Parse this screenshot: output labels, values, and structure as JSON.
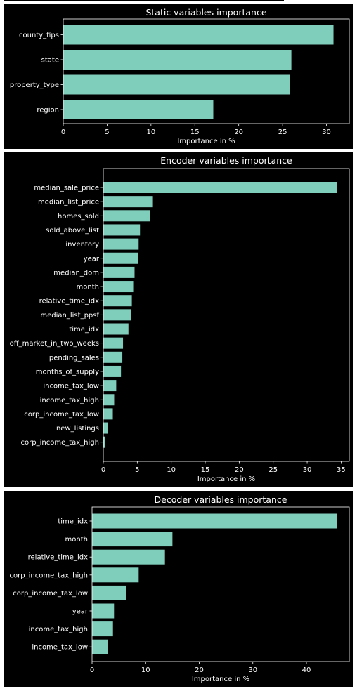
{
  "chart_data": [
    {
      "type": "bar",
      "orientation": "horizontal",
      "title": "Static variables importance",
      "xlabel": "Importance in %",
      "ylabel": "",
      "categories": [
        "county_fips",
        "state",
        "property_type",
        "region"
      ],
      "values": [
        30.8,
        26.0,
        25.8,
        17.1
      ],
      "xlim": [
        0,
        32.6
      ],
      "xticks": [
        0,
        5,
        10,
        15,
        20,
        25,
        30
      ],
      "grid": false,
      "bar_color": "#7fcdbb",
      "background": "#000000"
    },
    {
      "type": "bar",
      "orientation": "horizontal",
      "title": "Encoder variables importance",
      "xlabel": "Importance in %",
      "ylabel": "",
      "categories": [
        "median_sale_price",
        "median_list_price",
        "homes_sold",
        "sold_above_list",
        "inventory",
        "year",
        "median_dom",
        "month",
        "relative_time_idx",
        "median_list_ppsf",
        "time_idx",
        "off_market_in_two_weeks",
        "pending_sales",
        "months_of_supply",
        "income_tax_low",
        "income_tax_high",
        "corp_income_tax_low",
        "new_listings",
        "corp_income_tax_high"
      ],
      "values": [
        34.4,
        7.3,
        6.9,
        5.4,
        5.2,
        5.1,
        4.6,
        4.4,
        4.2,
        4.1,
        3.7,
        2.9,
        2.8,
        2.6,
        1.9,
        1.6,
        1.4,
        0.7,
        0.3
      ],
      "xlim": [
        0,
        36.2
      ],
      "xticks": [
        0,
        5,
        10,
        15,
        20,
        25,
        30,
        35
      ],
      "grid": false,
      "bar_color": "#7fcdbb",
      "background": "#000000"
    },
    {
      "type": "bar",
      "orientation": "horizontal",
      "title": "Decoder variables importance",
      "xlabel": "Importance in %",
      "ylabel": "",
      "categories": [
        "time_idx",
        "month",
        "relative_time_idx",
        "corp_income_tax_high",
        "corp_income_tax_low",
        "year",
        "income_tax_high",
        "income_tax_low"
      ],
      "values": [
        45.7,
        15.0,
        13.6,
        8.7,
        6.4,
        4.1,
        3.9,
        3.0
      ],
      "xlim": [
        0,
        48.0
      ],
      "xticks": [
        0,
        10,
        20,
        30,
        40
      ],
      "grid": false,
      "bar_color": "#7fcdbb",
      "background": "#000000"
    }
  ]
}
